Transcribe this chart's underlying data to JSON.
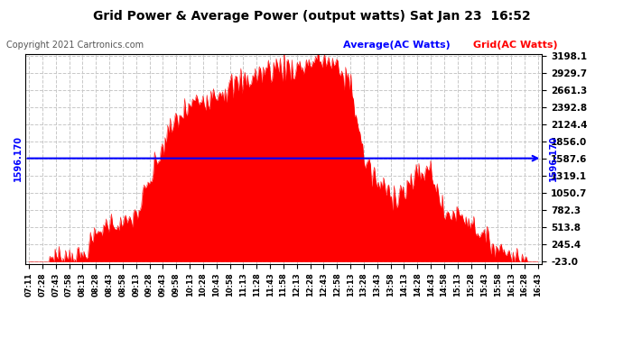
{
  "title": "Grid Power & Average Power (output watts) Sat Jan 23  16:52",
  "copyright": "Copyright 2021 Cartronics.com",
  "legend_avg": "Average(AC Watts)",
  "legend_grid": "Grid(AC Watts)",
  "avg_value": 1596.17,
  "avg_label": "1596.170",
  "ylim_min": -23.0,
  "ylim_max": 3198.1,
  "yticks": [
    3198.1,
    2929.7,
    2661.3,
    2392.8,
    2124.4,
    1856.0,
    1587.6,
    1319.1,
    1050.7,
    782.3,
    513.8,
    245.4,
    -23.0
  ],
  "background_color": "#ffffff",
  "fill_color": "#ff0000",
  "line_color": "#0000ff",
  "grid_color": "#c8c8c8",
  "title_color": "#000000",
  "copyright_color": "#555555",
  "xtick_labels": [
    "07:11",
    "07:28",
    "07:43",
    "07:58",
    "08:13",
    "08:28",
    "08:43",
    "08:58",
    "09:13",
    "09:28",
    "09:43",
    "09:58",
    "10:13",
    "10:28",
    "10:43",
    "10:58",
    "11:13",
    "11:28",
    "11:43",
    "11:58",
    "12:13",
    "12:28",
    "12:43",
    "12:58",
    "13:13",
    "13:28",
    "13:43",
    "13:58",
    "14:13",
    "14:28",
    "14:43",
    "14:58",
    "15:13",
    "15:28",
    "15:43",
    "15:58",
    "16:13",
    "16:28",
    "16:43"
  ]
}
